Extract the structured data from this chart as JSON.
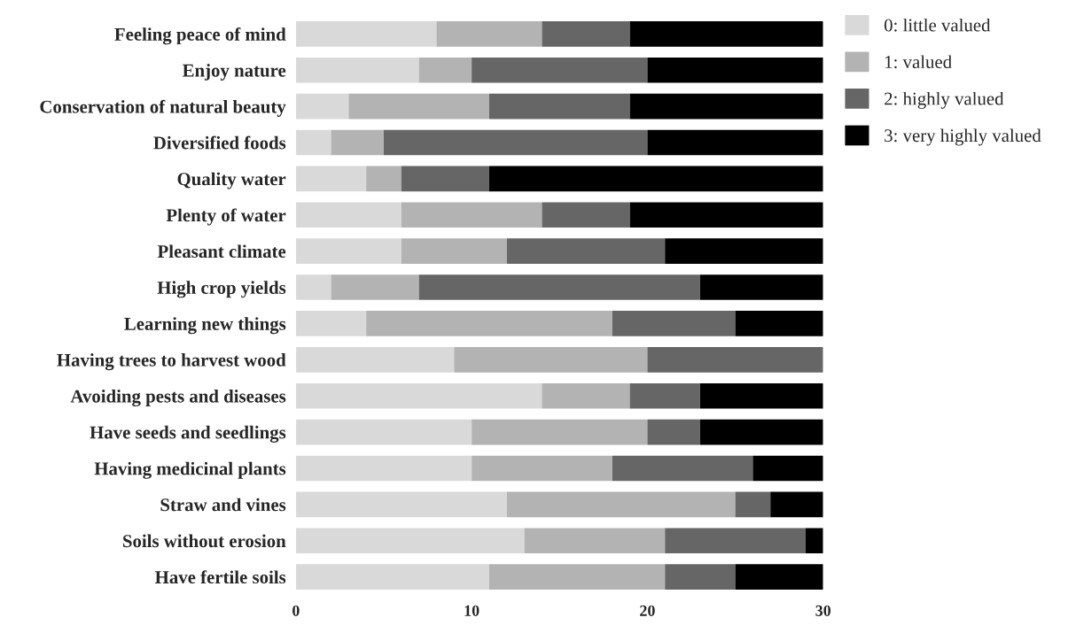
{
  "chart_data": {
    "type": "bar",
    "orientation": "horizontal",
    "stacked": true,
    "categories": [
      "Feeling peace of mind",
      "Enjoy nature",
      "Conservation of natural beauty",
      "Diversified foods",
      "Quality water",
      "Plenty of water",
      "Pleasant climate",
      "High crop yields",
      "Learning new things",
      "Having trees to harvest wood",
      "Avoiding pests and diseases",
      "Have seeds and seedlings",
      "Having medicinal plants",
      "Straw and vines",
      "Soils without erosion",
      "Have fertile soils"
    ],
    "series": [
      {
        "name": "0: little valued",
        "color": "#d9d9d9",
        "values": [
          8,
          7,
          3,
          2,
          4,
          6,
          6,
          2,
          4,
          9,
          14,
          10,
          10,
          12,
          13,
          11
        ]
      },
      {
        "name": "1: valued",
        "color": "#b3b3b3",
        "values": [
          6,
          3,
          8,
          3,
          2,
          8,
          6,
          5,
          14,
          11,
          5,
          10,
          8,
          13,
          8,
          10
        ]
      },
      {
        "name": "2: highly valued",
        "color": "#666666",
        "values": [
          5,
          10,
          8,
          15,
          5,
          5,
          9,
          16,
          7,
          10,
          4,
          3,
          8,
          2,
          8,
          4
        ]
      },
      {
        "name": "3: very highly valued",
        "color": "#000000",
        "values": [
          11,
          10,
          11,
          10,
          19,
          11,
          9,
          7,
          5,
          0,
          7,
          7,
          4,
          3,
          1,
          5
        ]
      }
    ],
    "xlim": [
      0,
      30
    ],
    "xticks": [
      0,
      10,
      20,
      30
    ],
    "grid": false,
    "legend": "top right"
  }
}
